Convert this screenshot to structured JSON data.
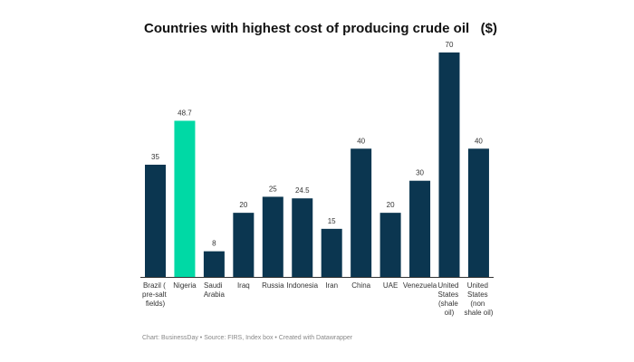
{
  "chart_data": {
    "type": "bar",
    "title": "Countries with highest cost of producing crude oil   ($)",
    "source": "Chart: BusinessDay • Source: FIRS, Index box • Created with Datawrapper",
    "categories": [
      "Brazil ( pre-salt fields)",
      "Nigeria",
      "Saudi Arabia",
      "Iraq",
      "Russia",
      "Indonesia",
      "Iran",
      "China",
      "UAE",
      "Venezuela",
      "United States (shale oil)",
      "United States (non shale oil)"
    ],
    "values": [
      35,
      48.7,
      8,
      20,
      25,
      24.5,
      15,
      40,
      20,
      30,
      70,
      40
    ],
    "colors": [
      "#0b3650",
      "#00d9a5",
      "#0b3650",
      "#0b3650",
      "#0b3650",
      "#0b3650",
      "#0b3650",
      "#0b3650",
      "#0b3650",
      "#0b3650",
      "#0b3650",
      "#0b3650"
    ]
  }
}
